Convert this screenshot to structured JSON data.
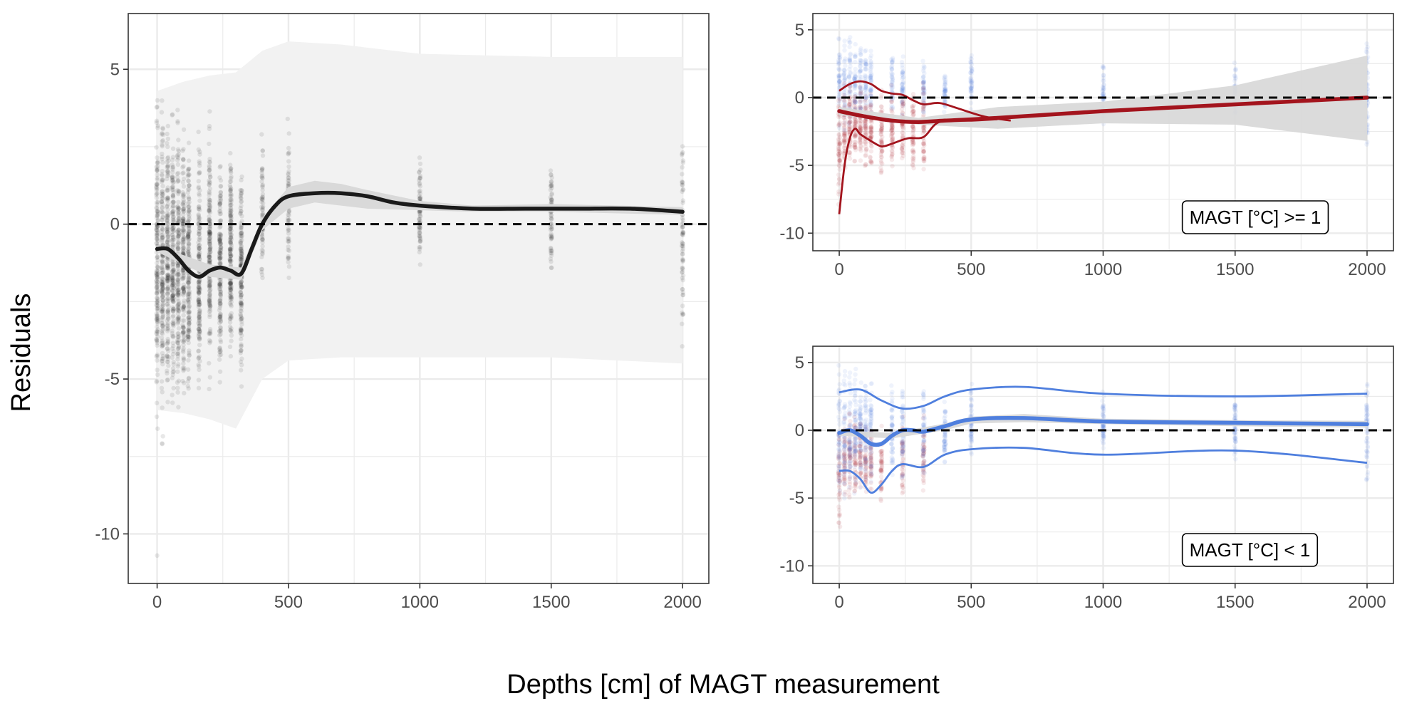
{
  "xlabel": "Depths [cm] of MAGT measurement",
  "ylabel": "Residuals",
  "colors": {
    "all": "#1a1a1a",
    "warm": "#a3141d",
    "cold": "#4f7fde",
    "band_outer": "#f2f2f2",
    "band_inner": "#d9d9d9",
    "grid": "#ebebeb"
  },
  "chart_data": [
    {
      "type": "scatter",
      "panel": "all",
      "xlim": [
        -110,
        2100
      ],
      "ylim": [
        -11.6,
        6.8
      ],
      "x_ticks": [
        0,
        500,
        1000,
        1500,
        2000
      ],
      "y_ticks": [
        5,
        0,
        -5,
        -10
      ],
      "x_tick_labels": [
        "0",
        "500",
        "1000",
        "1500",
        "2000"
      ],
      "y_tick_labels": [
        "5",
        "0",
        "-5",
        "-10"
      ],
      "reference_line": 0,
      "depths": [
        0,
        20,
        40,
        60,
        80,
        100,
        120,
        160,
        200,
        240,
        280,
        320,
        400,
        500,
        1000,
        1500,
        2000
      ],
      "point_range_min": [
        -8.1,
        -7.9,
        -7.4,
        -7.2,
        -6.9,
        -6.7,
        -6.4,
        -6.3,
        -5.8,
        -5.9,
        -5.5,
        -6.1,
        -2.7,
        -2.4,
        -2.4,
        -2.1,
        -4.9
      ],
      "point_range_max": [
        5.4,
        5.1,
        4.8,
        4.6,
        4.3,
        4.0,
        3.7,
        3.4,
        4.1,
        3.0,
        3.7,
        3.2,
        3.4,
        3.7,
        3.2,
        2.8,
        4.2
      ],
      "outliers": [
        [
          0,
          -10.7
        ]
      ],
      "smooth": {
        "x": [
          0,
          40,
          80,
          120,
          160,
          200,
          240,
          280,
          320,
          360,
          400,
          450,
          500,
          600,
          700,
          800,
          900,
          1000,
          1200,
          1400,
          1600,
          1800,
          2000
        ],
        "y": [
          -0.8,
          -0.8,
          -1.1,
          -1.5,
          -1.7,
          -1.5,
          -1.4,
          -1.5,
          -1.6,
          -0.8,
          0.0,
          0.6,
          0.9,
          1.0,
          1.0,
          0.9,
          0.7,
          0.6,
          0.5,
          0.5,
          0.5,
          0.5,
          0.4
        ]
      },
      "ci_inner": {
        "x": [
          0,
          200,
          320,
          400,
          500,
          600,
          700,
          800,
          1000,
          1200,
          1500,
          2000
        ],
        "lower": [
          -0.9,
          -1.7,
          -1.8,
          -0.2,
          0.5,
          0.7,
          0.6,
          0.5,
          0.45,
          0.4,
          0.4,
          0.3
        ],
        "upper": [
          -0.7,
          -1.3,
          -1.4,
          0.2,
          1.2,
          1.4,
          1.3,
          1.1,
          0.75,
          0.6,
          0.65,
          0.55
        ]
      },
      "prediction_band": {
        "x": [
          0,
          100,
          200,
          300,
          400,
          500,
          700,
          1000,
          1500,
          2000
        ],
        "lower": [
          -6.0,
          -6.1,
          -6.3,
          -6.6,
          -5.0,
          -4.4,
          -4.3,
          -4.3,
          -4.3,
          -4.5
        ],
        "upper": [
          4.3,
          4.6,
          4.8,
          4.9,
          5.6,
          5.9,
          5.8,
          5.5,
          5.4,
          5.4
        ]
      }
    },
    {
      "type": "scatter",
      "panel": "warm",
      "label": "MAGT [°C] >= 1",
      "xlim": [
        -100,
        2100
      ],
      "ylim": [
        -11.3,
        6.2
      ],
      "x_ticks": [
        0,
        500,
        1000,
        1500,
        2000
      ],
      "y_ticks": [
        5,
        0,
        -5,
        -10
      ],
      "x_tick_labels": [
        "0",
        "500",
        "1000",
        "1500",
        "2000"
      ],
      "y_tick_labels": [
        "5",
        "0",
        "-5",
        "-10"
      ],
      "reference_line": 0,
      "warm_depths": [
        0,
        20,
        40,
        60,
        80,
        100,
        120,
        160,
        200,
        240,
        280,
        320
      ],
      "warm_range_min": [
        -8.6,
        -5.8,
        -5.6,
        -5.4,
        -5.2,
        -5.6,
        -5.6,
        -6.0,
        -5.4,
        -5.8,
        -5.6,
        -6.0
      ],
      "warm_range_max": [
        0.8,
        1.2,
        1.6,
        1.4,
        1.2,
        1.0,
        1.0,
        0.6,
        1.0,
        0.8,
        1.0,
        1.6
      ],
      "cold_depths": [
        0,
        20,
        40,
        60,
        80,
        100,
        120,
        200,
        240,
        320,
        400,
        500,
        1000,
        1500,
        2000
      ],
      "cold_range_min": [
        -3.0,
        -2.8,
        -2.5,
        -2.4,
        -2.3,
        -2.2,
        -2.0,
        -2.0,
        -1.8,
        -1.6,
        -1.2,
        -1.0,
        -2.2,
        -1.6,
        -4.2
      ],
      "cold_range_max": [
        5.2,
        4.9,
        4.6,
        4.4,
        4.2,
        4.0,
        3.8,
        3.6,
        3.3,
        3.0,
        2.0,
        3.5,
        3.2,
        2.8,
        4.2
      ],
      "smooth_main": {
        "x": [
          0,
          100,
          200,
          300,
          400,
          600,
          1000,
          1500,
          2000
        ],
        "y": [
          -1.0,
          -1.4,
          -1.7,
          -1.8,
          -1.7,
          -1.5,
          -1.0,
          -0.5,
          0.0
        ]
      },
      "smooth_upper": {
        "x": [
          0,
          40,
          80,
          120,
          160,
          200,
          240,
          280,
          320,
          380,
          450,
          550,
          650
        ],
        "y": [
          0.5,
          1.0,
          1.2,
          1.0,
          0.5,
          0.3,
          0.2,
          -0.2,
          -0.5,
          -0.4,
          -0.8,
          -1.4,
          -1.7
        ]
      },
      "smooth_lower": {
        "x": [
          0,
          20,
          40,
          60,
          80,
          120,
          160,
          200,
          260,
          320,
          380,
          500,
          600
        ],
        "y": [
          -8.6,
          -5.0,
          -3.0,
          -2.3,
          -2.7,
          -3.2,
          -3.6,
          -3.4,
          -3.0,
          -2.9,
          -1.8,
          -1.7,
          -1.6
        ]
      },
      "ci": {
        "x": [
          0,
          300,
          600,
          1000,
          1500,
          2000
        ],
        "lower": [
          -1.3,
          -2.0,
          -2.3,
          -1.9,
          -2.0,
          -3.2
        ],
        "upper": [
          -0.7,
          -1.5,
          -0.7,
          -0.3,
          0.9,
          3.1
        ]
      }
    },
    {
      "type": "scatter",
      "panel": "cold",
      "label": "MAGT [°C] < 1",
      "xlim": [
        -100,
        2100
      ],
      "ylim": [
        -11.3,
        6.2
      ],
      "x_ticks": [
        0,
        500,
        1000,
        1500,
        2000
      ],
      "y_ticks": [
        5,
        0,
        -5,
        -10
      ],
      "x_tick_labels": [
        "0",
        "500",
        "1000",
        "1500",
        "2000"
      ],
      "y_tick_labels": [
        "5",
        "0",
        "-5",
        "-10"
      ],
      "reference_line": 0,
      "warm_depths": [
        0,
        20,
        40,
        60,
        80,
        100,
        120,
        160,
        240,
        320
      ],
      "warm_range_min": [
        -7.8,
        -5.6,
        -5.4,
        -5.0,
        -4.8,
        -5.2,
        -5.0,
        -5.6,
        -5.0,
        -4.8
      ],
      "warm_range_max": [
        1.0,
        1.4,
        1.6,
        1.2,
        1.0,
        0.8,
        0.6,
        0.4,
        1.4,
        1.8
      ],
      "cold_depths": [
        0,
        20,
        40,
        60,
        80,
        100,
        120,
        200,
        240,
        320,
        400,
        500,
        1000,
        1500,
        2000
      ],
      "cold_range_min": [
        -6.0,
        -5.6,
        -5.2,
        -5.0,
        -4.8,
        -4.4,
        -4.2,
        -4.4,
        -4.0,
        -3.6,
        -2.6,
        -2.6,
        -2.4,
        -2.2,
        -4.4
      ],
      "cold_range_max": [
        5.3,
        5.0,
        4.8,
        4.6,
        4.4,
        4.2,
        4.0,
        3.8,
        3.6,
        3.4,
        2.4,
        3.6,
        3.2,
        2.8,
        4.2
      ],
      "smooth_main": {
        "x": [
          0,
          40,
          80,
          120,
          160,
          200,
          240,
          280,
          320,
          400,
          500,
          700,
          1000,
          1500,
          2000
        ],
        "y": [
          -0.2,
          0.0,
          -0.4,
          -1.0,
          -1.0,
          -0.4,
          0.0,
          0.0,
          -0.1,
          0.3,
          0.8,
          0.9,
          0.65,
          0.55,
          0.45
        ]
      },
      "smooth_upper": {
        "x": [
          0,
          80,
          160,
          240,
          320,
          400,
          500,
          700,
          1000,
          1500,
          2000
        ],
        "y": [
          2.8,
          3.0,
          2.2,
          1.6,
          1.8,
          2.5,
          3.0,
          3.2,
          2.7,
          2.5,
          2.7
        ]
      },
      "smooth_lower": {
        "x": [
          0,
          40,
          80,
          120,
          160,
          200,
          240,
          320,
          400,
          500,
          700,
          1000,
          1500,
          2000
        ],
        "y": [
          -3.0,
          -3.0,
          -3.6,
          -4.6,
          -4.0,
          -3.0,
          -2.5,
          -2.7,
          -1.8,
          -1.4,
          -1.3,
          -1.8,
          -1.5,
          -2.4
        ]
      },
      "ci": {
        "x": [
          0,
          200,
          400,
          500,
          700,
          1000,
          1500,
          2000
        ],
        "lower": [
          -0.4,
          -0.6,
          0.0,
          0.5,
          0.6,
          0.45,
          0.3,
          0.2
        ],
        "upper": [
          0.0,
          -0.2,
          0.5,
          1.0,
          1.2,
          0.85,
          0.75,
          0.7
        ]
      }
    }
  ]
}
